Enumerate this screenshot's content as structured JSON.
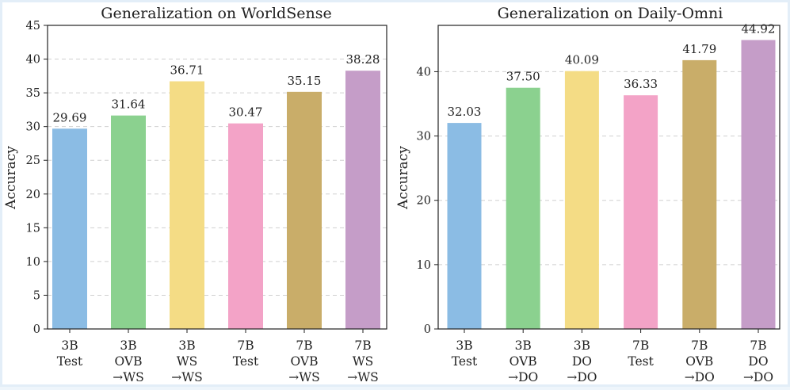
{
  "chart_data": [
    {
      "type": "bar",
      "title": "Generalization on WorldSense",
      "xlabel": "",
      "ylabel": "Accuracy",
      "ylim": [
        0,
        45
      ],
      "yticks": [
        0,
        5,
        10,
        15,
        20,
        25,
        30,
        35,
        40,
        45
      ],
      "grid": true,
      "categories": [
        [
          "3B",
          "Test"
        ],
        [
          "3B",
          "OVB",
          "→WS"
        ],
        [
          "3B",
          "WS",
          "→WS"
        ],
        [
          "7B",
          "Test"
        ],
        [
          "7B",
          "OVB",
          "→WS"
        ],
        [
          "7B",
          "WS",
          "→WS"
        ]
      ],
      "values": [
        29.69,
        31.64,
        36.71,
        30.47,
        35.15,
        38.28
      ],
      "value_labels": [
        "29.69",
        "31.64",
        "36.71",
        "30.47",
        "35.15",
        "38.28"
      ],
      "colors": [
        "#8bbce4",
        "#8bd18f",
        "#f4dc85",
        "#f3a3c7",
        "#c9ad69",
        "#c59dc8"
      ]
    },
    {
      "type": "bar",
      "title": "Generalization on Daily-Omni",
      "xlabel": "",
      "ylabel": "Accuracy",
      "ylim": [
        0,
        47.2
      ],
      "yticks": [
        0,
        10,
        20,
        30,
        40
      ],
      "grid": true,
      "categories": [
        [
          "3B",
          "Test"
        ],
        [
          "3B",
          "OVB",
          "→DO"
        ],
        [
          "3B",
          "DO",
          "→DO"
        ],
        [
          "7B",
          "Test"
        ],
        [
          "7B",
          "OVB",
          "→DO"
        ],
        [
          "7B",
          "DO",
          "→DO"
        ]
      ],
      "values": [
        32.03,
        37.5,
        40.09,
        36.33,
        41.79,
        44.92
      ],
      "value_labels": [
        "32.03",
        "37.50",
        "40.09",
        "36.33",
        "41.79",
        "44.92"
      ],
      "colors": [
        "#8bbce4",
        "#8bd18f",
        "#f4dc85",
        "#f3a3c7",
        "#c9ad69",
        "#c59dc8"
      ]
    }
  ]
}
